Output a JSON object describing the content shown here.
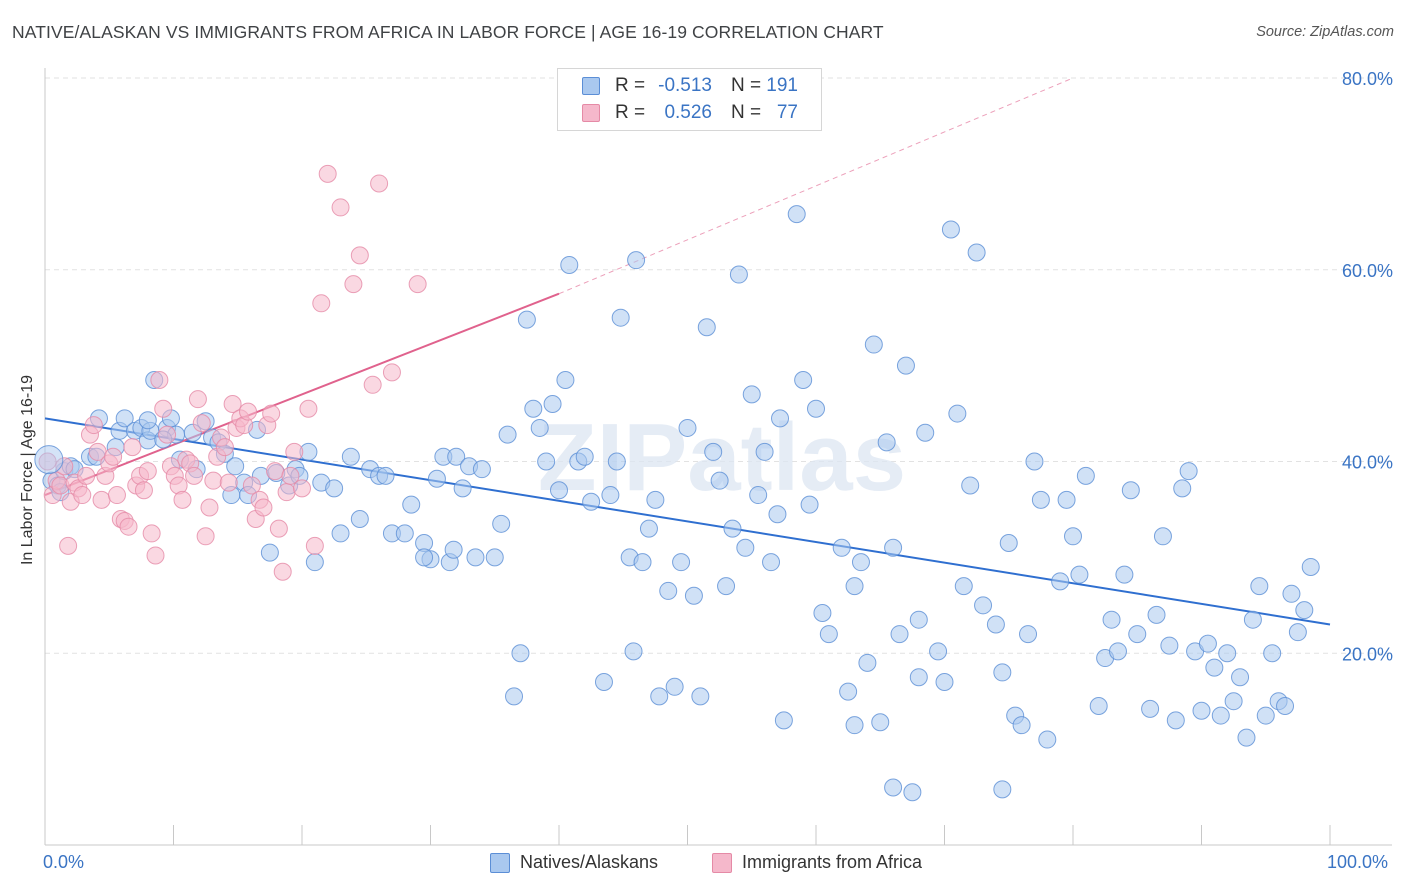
{
  "header": {
    "title": "NATIVE/ALASKAN VS IMMIGRANTS FROM AFRICA IN LABOR FORCE | AGE 16-19 CORRELATION CHART",
    "source": "Source: ZipAtlas.com"
  },
  "watermark": "ZIPatlas",
  "legend": {
    "r_label": "R =",
    "n_label": "N =",
    "rows": [
      {
        "r": "-0.513",
        "n": "191",
        "fill": "#a9c8ef",
        "stroke": "#5b8ed6"
      },
      {
        "r": "0.526",
        "n": "77",
        "fill": "#f5b8cb",
        "stroke": "#e58aa6"
      }
    ]
  },
  "bottom_legend": [
    "Natives/Alaskans",
    "Immigrants from Africa"
  ],
  "chart_data": {
    "type": "scatter",
    "title": "NATIVE/ALASKAN VS IMMIGRANTS FROM AFRICA IN LABOR FORCE | AGE 16-19 CORRELATION CHART",
    "xlabel": "",
    "ylabel": "In Labor Force | Age 16-19",
    "xlim": [
      0,
      100
    ],
    "ylim": [
      0,
      80
    ],
    "x_tick_labels": [
      "0.0%",
      "100.0%"
    ],
    "y_ticks": [
      20,
      40,
      60,
      80
    ],
    "y_tick_labels": [
      "20.0%",
      "40.0%",
      "60.0%",
      "80.0%"
    ],
    "grid": true,
    "legend_position": "top-center",
    "colors": {
      "blue_fill": "#a9c8ef",
      "blue_stroke": "#5b8ed6",
      "blue_line": "#2f6fd0",
      "pink_fill": "#f5b8cb",
      "pink_stroke": "#e58aa6",
      "pink_line": "#e0628d",
      "tick_text": "#3a74c4",
      "grid": "#e2e2e2"
    },
    "series": [
      {
        "name": "Natives/Alaskans",
        "color": "#a9c8ef",
        "r": -0.513,
        "n": 191,
        "trend": {
          "x": [
            0,
            100
          ],
          "y": [
            44.5,
            23.0
          ]
        },
        "points": [
          [
            0.5,
            38
          ],
          [
            1,
            37.5
          ],
          [
            1.2,
            36.8
          ],
          [
            1.5,
            39
          ],
          [
            2,
            39.5
          ],
          [
            2.3,
            39.2
          ],
          [
            3.5,
            40.5
          ],
          [
            4,
            40.5
          ],
          [
            4.2,
            44.5
          ],
          [
            5.5,
            41.5
          ],
          [
            5.8,
            43.2
          ],
          [
            6.2,
            44.5
          ],
          [
            7,
            43.2
          ],
          [
            7.5,
            43.5
          ],
          [
            8,
            42.2
          ],
          [
            8.2,
            43.2
          ],
          [
            8.5,
            48.5
          ],
          [
            9.5,
            43.5
          ],
          [
            9.8,
            44.5
          ],
          [
            10.2,
            42.8
          ],
          [
            10.5,
            40.2
          ],
          [
            11.5,
            43.0
          ],
          [
            11.8,
            39.2
          ],
          [
            12.5,
            44.2
          ],
          [
            13,
            42.5
          ],
          [
            13.5,
            42.0
          ],
          [
            14,
            40.8
          ],
          [
            14.8,
            39.5
          ],
          [
            15.5,
            37.8
          ],
          [
            15.8,
            36.5
          ],
          [
            16.5,
            43.3
          ],
          [
            16.8,
            38.5
          ],
          [
            17.5,
            30.5
          ],
          [
            18,
            38.8
          ],
          [
            19,
            37.5
          ],
          [
            19.5,
            39.2
          ],
          [
            20.5,
            41.0
          ],
          [
            21,
            29.5
          ],
          [
            21.5,
            37.8
          ],
          [
            22.5,
            37.2
          ],
          [
            23,
            32.5
          ],
          [
            23.8,
            40.5
          ],
          [
            24.5,
            34.0
          ],
          [
            25.3,
            39.2
          ],
          [
            26,
            38.5
          ],
          [
            26.5,
            38.5
          ],
          [
            27,
            32.5
          ],
          [
            28,
            32.5
          ],
          [
            28.5,
            35.5
          ],
          [
            29.5,
            31.5
          ],
          [
            30,
            29.8
          ],
          [
            30.5,
            38.2
          ],
          [
            31,
            40.5
          ],
          [
            31.5,
            29.5
          ],
          [
            32,
            40.5
          ],
          [
            32.5,
            37.2
          ],
          [
            33,
            39.5
          ],
          [
            33.5,
            30.0
          ],
          [
            34,
            39.2
          ],
          [
            35,
            30.0
          ],
          [
            35.5,
            33.5
          ],
          [
            36,
            42.8
          ],
          [
            36.5,
            15.5
          ],
          [
            37,
            20.0
          ],
          [
            37.5,
            54.8
          ],
          [
            38,
            45.5
          ],
          [
            38.5,
            43.5
          ],
          [
            39,
            40.0
          ],
          [
            39.5,
            46.0
          ],
          [
            40,
            37.0
          ],
          [
            40.5,
            48.5
          ],
          [
            40.8,
            60.5
          ],
          [
            41.5,
            40.0
          ],
          [
            42,
            40.5
          ],
          [
            42.5,
            35.8
          ],
          [
            43.5,
            17.0
          ],
          [
            44,
            36.5
          ],
          [
            44.5,
            40.0
          ],
          [
            44.8,
            55.0
          ],
          [
            45.5,
            30.0
          ],
          [
            45.8,
            20.2
          ],
          [
            46,
            61.0
          ],
          [
            46.5,
            29.5
          ],
          [
            47,
            33.0
          ],
          [
            47.5,
            36.0
          ],
          [
            47.8,
            15.5
          ],
          [
            48.5,
            26.5
          ],
          [
            49,
            16.5
          ],
          [
            49.5,
            29.5
          ],
          [
            50,
            43.5
          ],
          [
            50.5,
            26.0
          ],
          [
            51,
            15.5
          ],
          [
            51.5,
            54.0
          ],
          [
            52,
            41.0
          ],
          [
            52.5,
            38.0
          ],
          [
            53,
            27.0
          ],
          [
            53.5,
            33.0
          ],
          [
            54,
            59.5
          ],
          [
            54.5,
            31.0
          ],
          [
            55,
            47.0
          ],
          [
            55.5,
            36.5
          ],
          [
            56,
            41.0
          ],
          [
            56.5,
            29.5
          ],
          [
            57,
            34.5
          ],
          [
            57.5,
            13.0
          ],
          [
            58.5,
            65.8
          ],
          [
            59,
            48.5
          ],
          [
            59.5,
            35.5
          ],
          [
            60,
            45.5
          ],
          [
            60.5,
            24.2
          ],
          [
            61,
            22.0
          ],
          [
            62,
            31.0
          ],
          [
            62.5,
            16.0
          ],
          [
            63,
            27.0
          ],
          [
            64,
            19.0
          ],
          [
            64.5,
            52.2
          ],
          [
            65,
            12.8
          ],
          [
            65.5,
            42.0
          ],
          [
            66,
            31.0
          ],
          [
            66.5,
            22.0
          ],
          [
            67,
            50.0
          ],
          [
            68,
            23.5
          ],
          [
            68.5,
            43.0
          ],
          [
            69.5,
            20.2
          ],
          [
            70,
            17.0
          ],
          [
            70.5,
            64.2
          ],
          [
            71,
            45.0
          ],
          [
            71.5,
            27.0
          ],
          [
            72,
            37.5
          ],
          [
            72.5,
            61.8
          ],
          [
            73,
            25.0
          ],
          [
            74,
            23.0
          ],
          [
            74.5,
            18.0
          ],
          [
            75,
            31.5
          ],
          [
            75.5,
            13.5
          ],
          [
            76,
            12.5
          ],
          [
            76.5,
            22.0
          ],
          [
            77,
            40.0
          ],
          [
            77.5,
            36.0
          ],
          [
            78,
            11.0
          ],
          [
            79,
            27.5
          ],
          [
            79.5,
            36.0
          ],
          [
            80,
            32.2
          ],
          [
            80.5,
            28.2
          ],
          [
            81,
            38.5
          ],
          [
            82,
            14.5
          ],
          [
            82.5,
            19.5
          ],
          [
            83,
            23.5
          ],
          [
            83.5,
            20.2
          ],
          [
            84,
            28.2
          ],
          [
            84.5,
            37.0
          ],
          [
            85,
            22.0
          ],
          [
            86,
            14.2
          ],
          [
            86.5,
            24.0
          ],
          [
            87,
            32.2
          ],
          [
            87.5,
            20.8
          ],
          [
            88,
            13.0
          ],
          [
            88.5,
            37.2
          ],
          [
            89,
            39.0
          ],
          [
            89.5,
            20.2
          ],
          [
            90,
            14.0
          ],
          [
            90.5,
            21.0
          ],
          [
            91,
            18.5
          ],
          [
            91.5,
            13.5
          ],
          [
            92,
            20.0
          ],
          [
            92.5,
            15.0
          ],
          [
            93,
            17.5
          ],
          [
            93.5,
            11.2
          ],
          [
            94,
            23.5
          ],
          [
            94.5,
            27.0
          ],
          [
            95,
            13.5
          ],
          [
            95.5,
            20.0
          ],
          [
            96,
            15.0
          ],
          [
            96.5,
            14.5
          ],
          [
            97,
            26.2
          ],
          [
            97.5,
            22.2
          ],
          [
            98,
            24.5
          ],
          [
            98.5,
            29.0
          ],
          [
            67.5,
            5.5
          ],
          [
            74.5,
            5.8
          ],
          [
            63.5,
            29.5
          ],
          [
            66,
            6.0
          ],
          [
            29.5,
            30.0
          ],
          [
            14.5,
            36.5
          ],
          [
            8,
            44.3
          ],
          [
            9.2,
            42.3
          ],
          [
            19.8,
            38.5
          ],
          [
            31.8,
            30.8
          ],
          [
            57.2,
            44.5
          ],
          [
            68,
            17.5
          ],
          [
            63,
            12.5
          ]
        ]
      },
      {
        "name": "Immigrants from Africa",
        "color": "#f5b8cb",
        "r": 0.526,
        "n": 77,
        "trend": {
          "x": [
            0,
            40
          ],
          "y": [
            36.5,
            57.5
          ]
        },
        "trend_extended": {
          "x": [
            40,
            80
          ],
          "y": [
            57.5,
            80.0
          ]
        },
        "points": [
          [
            0.2,
            40
          ],
          [
            0.6,
            36.5
          ],
          [
            0.9,
            38
          ],
          [
            1.2,
            37.5
          ],
          [
            1.5,
            39.5
          ],
          [
            1.8,
            31.2
          ],
          [
            2,
            35.8
          ],
          [
            2.3,
            37.8
          ],
          [
            2.6,
            37.2
          ],
          [
            2.9,
            36.5
          ],
          [
            3.2,
            38.5
          ],
          [
            3.5,
            42.8
          ],
          [
            3.8,
            43.8
          ],
          [
            4.1,
            41.0
          ],
          [
            4.4,
            36.0
          ],
          [
            4.7,
            38.5
          ],
          [
            5,
            39.8
          ],
          [
            5.3,
            40.5
          ],
          [
            5.6,
            36.5
          ],
          [
            5.9,
            34.0
          ],
          [
            6.2,
            33.8
          ],
          [
            6.5,
            33.2
          ],
          [
            6.8,
            41.5
          ],
          [
            7.1,
            37.5
          ],
          [
            7.4,
            38.5
          ],
          [
            7.7,
            37.0
          ],
          [
            8,
            39.0
          ],
          [
            8.3,
            32.5
          ],
          [
            8.6,
            30.2
          ],
          [
            8.9,
            48.5
          ],
          [
            9.2,
            45.5
          ],
          [
            9.5,
            42.8
          ],
          [
            9.8,
            39.5
          ],
          [
            10.1,
            38.5
          ],
          [
            10.4,
            37.5
          ],
          [
            10.7,
            36.0
          ],
          [
            11,
            40.2
          ],
          [
            11.3,
            39.8
          ],
          [
            11.6,
            38.5
          ],
          [
            11.9,
            46.5
          ],
          [
            12.2,
            44.0
          ],
          [
            12.5,
            32.2
          ],
          [
            12.8,
            35.2
          ],
          [
            13.1,
            38.0
          ],
          [
            13.4,
            40.5
          ],
          [
            13.7,
            42.5
          ],
          [
            14,
            41.5
          ],
          [
            14.3,
            37.8
          ],
          [
            14.6,
            46.0
          ],
          [
            14.9,
            43.5
          ],
          [
            15.2,
            44.5
          ],
          [
            15.5,
            43.8
          ],
          [
            15.8,
            45.2
          ],
          [
            16.1,
            37.5
          ],
          [
            16.4,
            34.0
          ],
          [
            16.7,
            36.0
          ],
          [
            17,
            35.2
          ],
          [
            17.3,
            43.8
          ],
          [
            17.6,
            45.0
          ],
          [
            17.9,
            39.0
          ],
          [
            18.2,
            33.0
          ],
          [
            18.5,
            28.5
          ],
          [
            18.8,
            36.8
          ],
          [
            19.1,
            38.5
          ],
          [
            19.4,
            41.0
          ],
          [
            20,
            37.2
          ],
          [
            20.5,
            45.5
          ],
          [
            21,
            31.2
          ],
          [
            21.5,
            56.5
          ],
          [
            22,
            70.0
          ],
          [
            23,
            66.5
          ],
          [
            24,
            58.5
          ],
          [
            24.5,
            61.5
          ],
          [
            25.5,
            48.0
          ],
          [
            26,
            69.0
          ],
          [
            27,
            49.3
          ],
          [
            29,
            58.5
          ]
        ]
      }
    ]
  }
}
